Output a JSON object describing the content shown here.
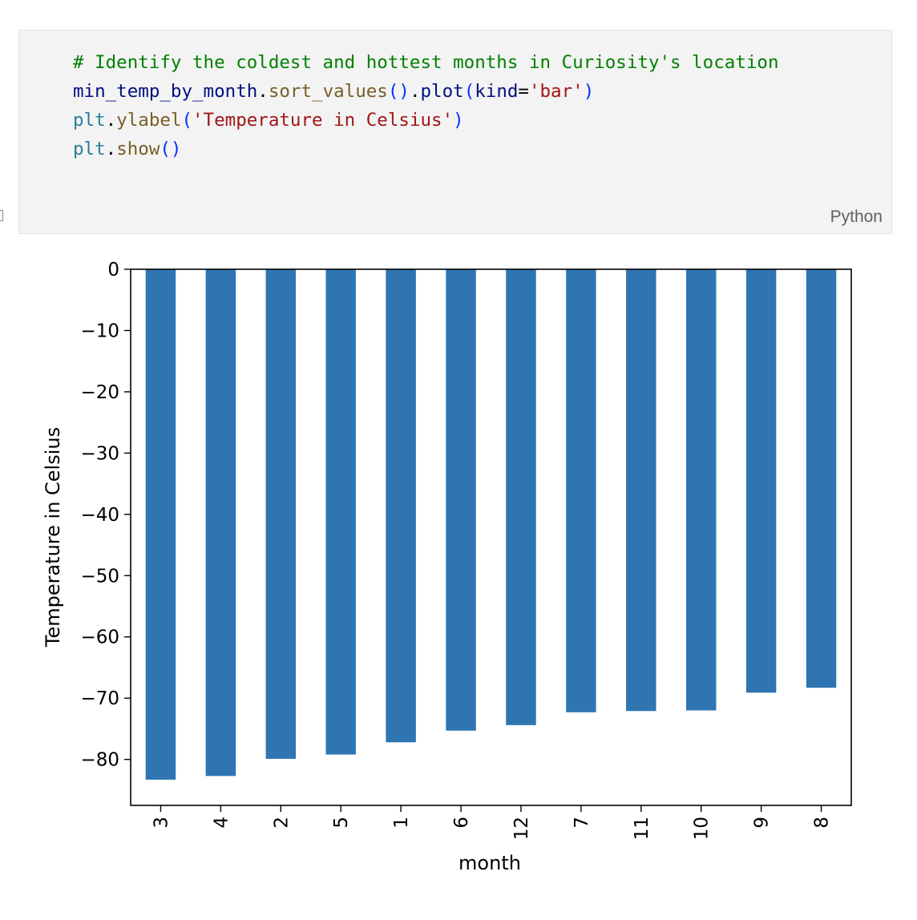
{
  "code_cell": {
    "language": "Python",
    "comment": "# Identify the coldest and hottest months in Curiosity's location",
    "line2": {
      "var": "min_temp_by_month",
      "dot1": ".",
      "fn1": "sort_values",
      "paren1": "()",
      "dot2": ".",
      "fn2": "plot",
      "open": "(",
      "arg": "kind",
      "eq": "=",
      "str": "'bar'",
      "close": ")"
    },
    "line3": {
      "mod": "plt",
      "dot": ".",
      "fn": "ylabel",
      "open": "(",
      "str": "'Temperature in Celsius'",
      "close": ")"
    },
    "line4": {
      "mod": "plt",
      "dot": ".",
      "fn": "show",
      "paren": "()"
    }
  },
  "chart_data": {
    "type": "bar",
    "categories": [
      "3",
      "4",
      "2",
      "5",
      "1",
      "6",
      "12",
      "7",
      "11",
      "10",
      "9",
      "8"
    ],
    "values": [
      -83.3,
      -82.7,
      -79.9,
      -79.2,
      -77.2,
      -75.3,
      -74.4,
      -72.3,
      -72.1,
      -72.0,
      -69.1,
      -68.3
    ],
    "xlabel": "month",
    "ylabel": "Temperature in Celsius",
    "ylim": [
      -87.5,
      0
    ],
    "yticks": [
      0,
      -10,
      -20,
      -30,
      -40,
      -50,
      -60,
      -70,
      -80
    ],
    "ytick_labels": [
      "0",
      "−10",
      "−20",
      "−30",
      "−40",
      "−50",
      "−60",
      "−70",
      "−80"
    ],
    "bar_color": "#2e75b2",
    "grid": false,
    "legend": "none"
  }
}
